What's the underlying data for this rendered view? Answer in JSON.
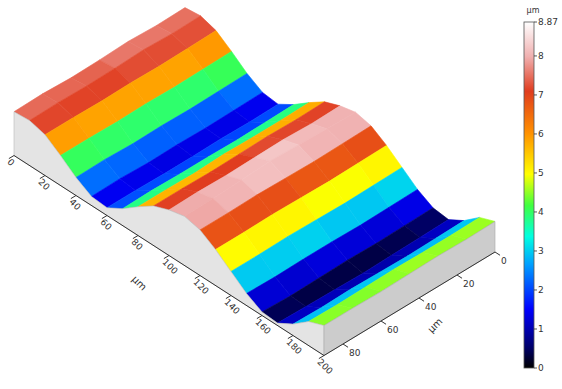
{
  "chart_data": {
    "type": "surface",
    "x_label": "µm",
    "y_label": "µm",
    "z_label": "µm",
    "x": [
      0,
      10,
      20,
      30,
      40,
      50,
      60,
      70,
      80,
      90,
      100,
      110,
      120,
      130,
      140,
      150,
      160,
      170,
      180,
      190,
      200
    ],
    "y": [
      0,
      15,
      30,
      45,
      60,
      75,
      90
    ],
    "z": [
      [
        7.4,
        7.7,
        6.9,
        5.1,
        3.1,
        1.6,
        1.3,
        2.9,
        4.9,
        6.7,
        7.7,
        8.3,
        7.7,
        6.1,
        4.1,
        2.1,
        0.7,
        0.4,
        1.9,
        4.1,
        5.1
      ],
      [
        7.3,
        7.6,
        6.8,
        5.0,
        3.0,
        1.5,
        1.2,
        2.8,
        4.8,
        6.6,
        7.6,
        8.4,
        7.6,
        6.0,
        4.0,
        2.0,
        0.6,
        0.3,
        1.8,
        4.0,
        5.0
      ],
      [
        7.5,
        7.8,
        6.7,
        4.9,
        2.9,
        1.4,
        1.3,
        2.7,
        4.8,
        6.7,
        7.8,
        8.6,
        7.5,
        5.9,
        3.9,
        1.9,
        0.5,
        0.2,
        1.7,
        4.0,
        5.1
      ],
      [
        7.3,
        7.6,
        6.8,
        5.0,
        3.0,
        1.5,
        1.2,
        2.8,
        4.9,
        6.6,
        7.7,
        8.8,
        7.6,
        6.0,
        4.0,
        2.0,
        0.6,
        0.1,
        1.8,
        4.1,
        5.0
      ],
      [
        7.2,
        7.5,
        6.7,
        4.9,
        2.9,
        1.4,
        1.2,
        2.8,
        4.7,
        6.5,
        7.6,
        8.5,
        7.7,
        6.1,
        4.1,
        2.0,
        0.5,
        0.2,
        1.9,
        4.0,
        4.9
      ],
      [
        7.4,
        7.6,
        6.8,
        5.0,
        3.1,
        1.6,
        1.3,
        2.9,
        4.8,
        6.6,
        7.7,
        8.3,
        7.6,
        6.0,
        4.0,
        1.9,
        0.4,
        0.3,
        1.8,
        3.9,
        5.0
      ],
      [
        7.3,
        7.5,
        6.8,
        5.0,
        3.0,
        1.5,
        1.3,
        2.8,
        4.8,
        6.6,
        7.6,
        8.2,
        7.6,
        6.0,
        4.0,
        2.0,
        0.6,
        0.4,
        1.9,
        4.0,
        5.0
      ]
    ],
    "xlim": [
      0,
      200
    ],
    "ylim": [
      0,
      90
    ],
    "zlim": [
      0,
      8.87
    ],
    "xticks": [
      0,
      20,
      40,
      60,
      80,
      100,
      120,
      140,
      160,
      180,
      200
    ],
    "yticks": [
      0,
      20,
      40,
      60,
      80
    ],
    "zticks": [
      0,
      1,
      2,
      3,
      4,
      5,
      6,
      7,
      8,
      8.87
    ]
  }
}
